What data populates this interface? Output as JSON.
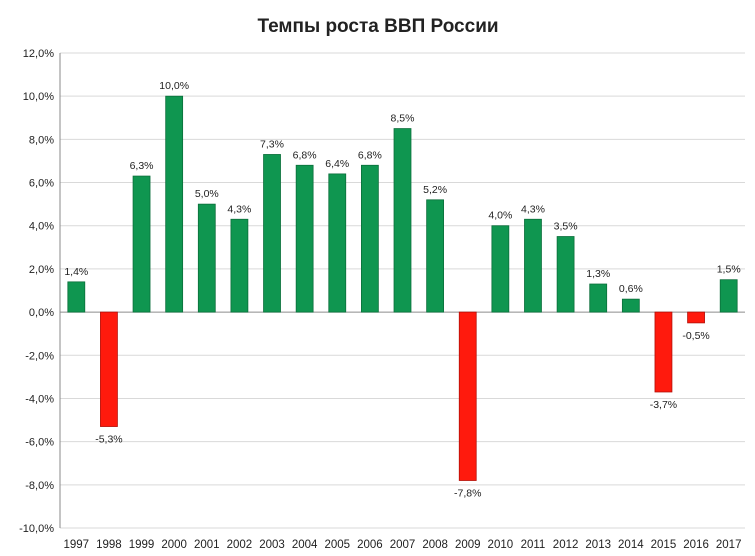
{
  "chart_data": {
    "type": "bar",
    "title": "Темпы роста ВВП России",
    "xlabel": "",
    "ylabel": "",
    "categories": [
      "1997",
      "1998",
      "1999",
      "2000",
      "2001",
      "2002",
      "2003",
      "2004",
      "2005",
      "2006",
      "2007",
      "2008",
      "2009",
      "2010",
      "2011",
      "2012",
      "2013",
      "2014",
      "2015",
      "2016",
      "2017"
    ],
    "values": [
      1.4,
      -5.3,
      6.3,
      10.0,
      5.0,
      4.3,
      7.3,
      6.8,
      6.4,
      6.8,
      8.5,
      5.2,
      -7.8,
      4.0,
      4.3,
      3.5,
      1.3,
      0.6,
      -3.7,
      -0.5,
      1.5
    ],
    "data_labels": [
      "1,4%",
      "-5,3%",
      "6,3%",
      "10,0%",
      "5,0%",
      "4,3%",
      "7,3%",
      "6,8%",
      "6,4%",
      "6,8%",
      "8,5%",
      "5,2%",
      "-7,8%",
      "4,0%",
      "4,3%",
      "3,5%",
      "1,3%",
      "0,6%",
      "-3,7%",
      "-0,5%",
      "1,5%"
    ],
    "ylim": [
      -10,
      12
    ],
    "y_ticks": [
      12,
      10,
      8,
      6,
      4,
      2,
      0,
      -2,
      -4,
      -6,
      -8,
      -10
    ],
    "y_tick_labels": [
      "12,0%",
      "10,0%",
      "8,0%",
      "6,0%",
      "4,0%",
      "2,0%",
      "0,0%",
      "-2,0%",
      "-4,0%",
      "-6,0%",
      "-8,0%",
      "-10,0%"
    ],
    "grid": true,
    "legend": "none",
    "colors": {
      "positive": "#0f9650",
      "negative": "#ff1a0d",
      "positive_border": "#0a6e3a",
      "negative_border": "#b30f08",
      "grid": "#d9d9d9"
    }
  }
}
